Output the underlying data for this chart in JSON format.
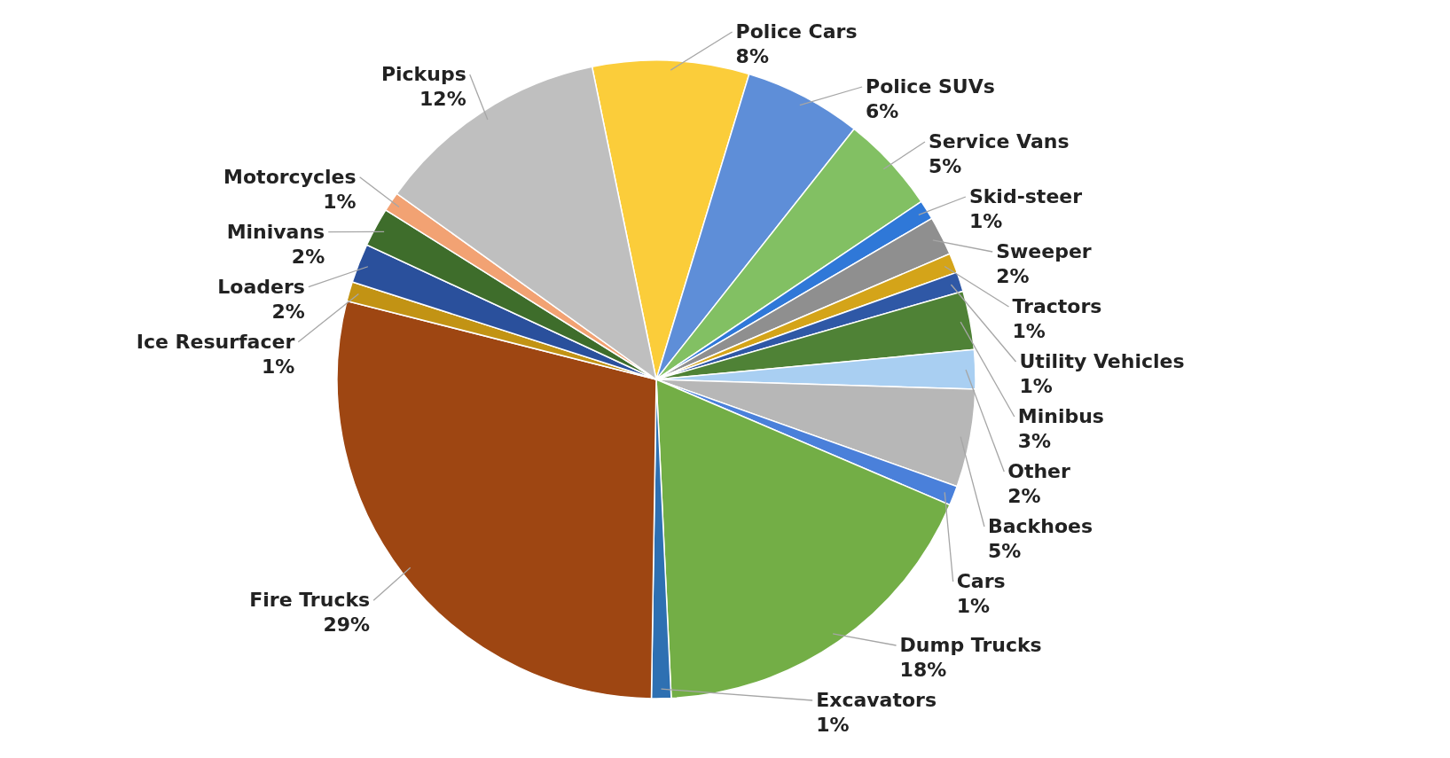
{
  "chart_data": {
    "type": "pie",
    "categories": [
      "Police Cars",
      "Police SUVs",
      "Service Vans",
      "Skid-steer",
      "Sweeper",
      "Tractors",
      "Utility Vehicles",
      "Minibus",
      "Other",
      "Backhoes",
      "Cars",
      "Dump Trucks",
      "Excavators",
      "Fire Trucks",
      "Ice Resurfacer",
      "Loaders",
      "Minivans",
      "Motorcycles",
      "Pickups"
    ],
    "values": [
      8,
      6,
      5,
      1,
      2,
      1,
      1,
      3,
      2,
      5,
      1,
      18,
      1,
      29,
      1,
      2,
      2,
      1,
      12
    ],
    "value_labels": [
      "8%",
      "6%",
      "5%",
      "1%",
      "2%",
      "1%",
      "1%",
      "3%",
      "2%",
      "5%",
      "1%",
      "18%",
      "1%",
      "29%",
      "1%",
      "2%",
      "2%",
      "1%",
      "12%"
    ],
    "colors": [
      "#fbcd3a",
      "#5e8ed8",
      "#82c063",
      "#2f78d8",
      "#8f8f8f",
      "#d4a419",
      "#2f58a6",
      "#4f8236",
      "#a9cff2",
      "#b7b7b7",
      "#4a80da",
      "#73ae46",
      "#2e70b2",
      "#9e4612",
      "#c29314",
      "#2a509c",
      "#3e6d2b",
      "#f2a273",
      "#bfbfbf"
    ]
  }
}
